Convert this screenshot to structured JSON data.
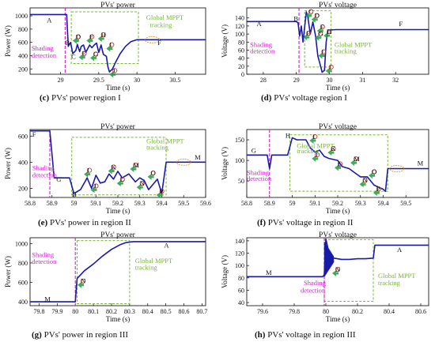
{
  "colors": {
    "curve": "#1a1aa8",
    "shading": "#d21ed2",
    "mppt": "#7ab43c",
    "marker": "#c0392b",
    "arrow": "#1e9e3e",
    "circle": "#e1a42a",
    "axis": "#000000"
  },
  "figure": {
    "captions": [
      {
        "tag": "(c)",
        "text": "PVs' power region I"
      },
      {
        "tag": "(d)",
        "text": "PVs' voltage region I"
      },
      {
        "tag": "(e)",
        "text": "PVs' power in region II"
      },
      {
        "tag": "(f)",
        "text": "PVs' voltage in region II"
      },
      {
        "tag": "(g)",
        "text": "PVs' power in region III"
      },
      {
        "tag": "(h)",
        "text": "PVs' voltage in region III"
      }
    ]
  },
  "chart_data": [
    {
      "type": "line",
      "title": "PVs' power",
      "xlabel": "Time (s)",
      "ylabel": "Power (W)",
      "xlim": [
        28.6,
        30.9
      ],
      "ylim": [
        120,
        1120
      ],
      "xticks": [
        29,
        29.5,
        30,
        30.5
      ],
      "yticks": [
        200,
        400,
        600,
        800,
        1000
      ],
      "series": [
        {
          "x": [
            28.6,
            29.08,
            29.1,
            29.13,
            29.16,
            29.2,
            29.22,
            29.25,
            29.27,
            29.3,
            29.33,
            29.38,
            29.41,
            29.44,
            29.47,
            29.5,
            29.53,
            29.56,
            29.6,
            29.62,
            29.64,
            29.68,
            29.72,
            29.78,
            29.85,
            29.92,
            30.0,
            30.3,
            30.9
          ],
          "y": [
            1020,
            1020,
            540,
            600,
            430,
            480,
            570,
            460,
            540,
            560,
            450,
            560,
            520,
            560,
            590,
            450,
            560,
            420,
            390,
            230,
            155,
            200,
            300,
            430,
            540,
            610,
            640,
            640,
            640
          ]
        }
      ],
      "shading_detection_x": 29.06,
      "mppt_window": {
        "x": [
          29.14,
          30.02
        ],
        "y": [
          280,
          1060
        ]
      },
      "point_labels": [
        {
          "t": "A",
          "x": 28.82,
          "y": 900
        },
        {
          "t": "B",
          "x": 29.06,
          "y": 560
        },
        {
          "t": "C",
          "x": 29.14,
          "y": 350
        },
        {
          "t": "D",
          "x": 29.2,
          "y": 650
        },
        {
          "t": "E",
          "x": 29.28,
          "y": 400
        },
        {
          "t": "F",
          "x": 29.38,
          "y": 650
        },
        {
          "t": "G",
          "x": 29.43,
          "y": 390
        },
        {
          "t": "H",
          "x": 29.53,
          "y": 680
        },
        {
          "t": "I",
          "x": 29.64,
          "y": 530
        },
        {
          "t": "J",
          "x": 29.68,
          "y": 140
        },
        {
          "t": "F",
          "x": 30.27,
          "y": 560
        }
      ],
      "annotations": [
        {
          "text": "Shading",
          "x": 28.62,
          "y": 480
        },
        {
          "text": "detection",
          "x": 28.62,
          "y": 370
        },
        {
          "text": "Global MPPT",
          "x": 30.12,
          "y": 940
        },
        {
          "text": "tracking",
          "x": 30.17,
          "y": 830
        }
      ],
      "circle_at": {
        "x": 30.2,
        "y": 640
      }
    },
    {
      "type": "line",
      "title": "PVs' voltage",
      "xlabel": "Time (s)",
      "ylabel": "Voltage (V)",
      "xlim": [
        27.5,
        33.0
      ],
      "ylim": [
        0,
        165
      ],
      "xticks": [
        28,
        29,
        30,
        31,
        32
      ],
      "yticks": [
        0,
        20,
        40,
        60,
        80,
        100,
        120,
        140
      ],
      "series": [
        {
          "x": [
            27.5,
            29.0,
            29.05,
            29.1,
            29.15,
            29.2,
            29.3,
            29.35,
            29.42,
            29.5,
            29.58,
            29.65,
            29.7,
            29.78,
            29.85,
            29.9,
            29.95,
            30.0,
            30.2,
            33.0
          ],
          "y": [
            131,
            131,
            128,
            95,
            120,
            80,
            155,
            140,
            100,
            130,
            95,
            45,
            30,
            5,
            10,
            80,
            110,
            110,
            111,
            111
          ]
        }
      ],
      "shading_detection_x": 29.08,
      "mppt_window": {
        "x": [
          29.25,
          30.05
        ],
        "y": [
          18,
          158
        ]
      },
      "point_labels": [
        {
          "t": "A",
          "x": 27.8,
          "y": 120
        },
        {
          "t": "B",
          "x": 28.92,
          "y": 133
        },
        {
          "t": "C",
          "x": 29.37,
          "y": 150
        },
        {
          "t": "D",
          "x": 29.55,
          "y": 140
        },
        {
          "t": "E",
          "x": 29.3,
          "y": 96
        },
        {
          "t": "F",
          "x": 29.72,
          "y": 112
        },
        {
          "t": "G",
          "x": 29.66,
          "y": 95
        },
        {
          "t": "H",
          "x": 29.92,
          "y": 100
        },
        {
          "t": "I",
          "x": 29.76,
          "y": 50
        },
        {
          "t": "J",
          "x": 29.98,
          "y": 12
        },
        {
          "t": "F",
          "x": 32.1,
          "y": 120
        }
      ],
      "annotations": [
        {
          "text": "Shading",
          "x": 27.6,
          "y": 68
        },
        {
          "text": "detection",
          "x": 27.6,
          "y": 52
        },
        {
          "text": "Global MPPT",
          "x": 30.15,
          "y": 68
        },
        {
          "text": "tracking",
          "x": 30.15,
          "y": 52
        }
      ],
      "circle_at": null
    },
    {
      "type": "line",
      "title": "PVs' power",
      "xlabel": "Time (s)",
      "ylabel": "Power (W)",
      "xlim": [
        58.8,
        59.6
      ],
      "ylim": [
        130,
        650
      ],
      "xticks": [
        58.8,
        58.9,
        59,
        59.1,
        59.2,
        59.3,
        59.4,
        59.5,
        59.6
      ],
      "yticks": [
        200,
        400,
        600
      ],
      "series": [
        {
          "x": [
            58.8,
            58.89,
            58.91,
            58.98,
            59.0,
            59.03,
            59.06,
            59.08,
            59.1,
            59.12,
            59.14,
            59.16,
            59.18,
            59.2,
            59.22,
            59.25,
            59.28,
            59.3,
            59.32,
            59.34,
            59.36,
            59.38,
            59.4,
            59.42,
            59.6
          ],
          "y": [
            640,
            640,
            280,
            280,
            160,
            190,
            280,
            200,
            300,
            240,
            250,
            310,
            270,
            330,
            280,
            310,
            250,
            280,
            260,
            190,
            230,
            270,
            160,
            400,
            400
          ]
        }
      ],
      "shading_detection_x": 58.89,
      "mppt_window": {
        "x": [
          58.99,
          59.42
        ],
        "y": [
          150,
          590
        ]
      },
      "point_labels": [
        {
          "t": "F",
          "x": 58.81,
          "y": 595
        },
        {
          "t": "G",
          "x": 58.92,
          "y": 250
        },
        {
          "t": "H",
          "x": 58.99,
          "y": 135
        },
        {
          "t": "I",
          "x": 59.06,
          "y": 320
        },
        {
          "t": "J",
          "x": 59.09,
          "y": 200
        },
        {
          "t": "K",
          "x": 59.17,
          "y": 345
        },
        {
          "t": "L",
          "x": 59.21,
          "y": 250
        },
        {
          "t": "M",
          "x": 59.27,
          "y": 360
        },
        {
          "t": "N",
          "x": 59.3,
          "y": 220
        },
        {
          "t": "O",
          "x": 59.35,
          "y": 300
        },
        {
          "t": "P",
          "x": 59.39,
          "y": 160
        },
        {
          "t": "M",
          "x": 59.55,
          "y": 420
        }
      ],
      "annotations": [
        {
          "text": "Shading",
          "x": 58.81,
          "y": 340
        },
        {
          "text": "detection",
          "x": 58.81,
          "y": 285
        },
        {
          "text": "Global MPPT",
          "x": 59.33,
          "y": 545
        },
        {
          "text": "tracking",
          "x": 59.33,
          "y": 495
        }
      ],
      "circle_at": {
        "x": 59.5,
        "y": 400
      }
    },
    {
      "type": "line",
      "title": "PVs' voltage",
      "xlabel": "Time (s)",
      "ylabel": "Voltage (V)",
      "xlim": [
        58.8,
        59.6
      ],
      "ylim": [
        10,
        175
      ],
      "xticks": [
        58.8,
        58.9,
        59,
        59.1,
        59.2,
        59.3,
        59.4,
        59.5
      ],
      "yticks": [
        50,
        100,
        150
      ],
      "series": [
        {
          "x": [
            58.8,
            58.89,
            58.9,
            58.91,
            58.98,
            59.0,
            59.02,
            59.06,
            59.08,
            59.1,
            59.12,
            59.14,
            59.16,
            59.2,
            59.22,
            59.25,
            59.3,
            59.33,
            59.36,
            59.4,
            59.41,
            59.42,
            59.6
          ],
          "y": [
            113,
            113,
            80,
            113,
            113,
            155,
            150,
            150,
            130,
            120,
            125,
            110,
            105,
            100,
            85,
            80,
            60,
            60,
            40,
            30,
            25,
            80,
            80
          ]
        }
      ],
      "shading_detection_x": 58.9,
      "mppt_window": {
        "x": [
          58.99,
          59.42
        ],
        "y": [
          25,
          162
        ]
      },
      "point_labels": [
        {
          "t": "G",
          "x": 58.82,
          "y": 118
        },
        {
          "t": "H",
          "x": 58.97,
          "y": 155
        },
        {
          "t": "I",
          "x": 59.09,
          "y": 152
        },
        {
          "t": "J",
          "x": 59.1,
          "y": 108
        },
        {
          "t": "K",
          "x": 59.17,
          "y": 123
        },
        {
          "t": "L",
          "x": 59.2,
          "y": 86
        },
        {
          "t": "M",
          "x": 59.27,
          "y": 98
        },
        {
          "t": "N",
          "x": 59.31,
          "y": 46
        },
        {
          "t": "O",
          "x": 59.35,
          "y": 67
        },
        {
          "t": "P",
          "x": 59.37,
          "y": 25
        },
        {
          "t": "M",
          "x": 59.55,
          "y": 88
        }
      ],
      "annotations": [
        {
          "text": "Shading",
          "x": 58.8,
          "y": 65
        },
        {
          "text": "detection",
          "x": 58.8,
          "y": 50
        },
        {
          "text": "Global MPPT",
          "x": 59.02,
          "y": 130
        },
        {
          "text": "tracking",
          "x": 59.02,
          "y": 117
        }
      ],
      "circle_at": {
        "x": 59.46,
        "y": 80
      }
    },
    {
      "type": "line",
      "title": "PVs' power",
      "xlabel": "Time (s)",
      "ylabel": "Power (W)",
      "xlim": [
        79.75,
        80.72
      ],
      "ylim": [
        360,
        1060
      ],
      "xticks": [
        79.8,
        79.9,
        80,
        80.1,
        80.2,
        80.3,
        80.4,
        80.5,
        80.6,
        80.7
      ],
      "yticks": [
        400,
        600,
        800,
        1000
      ],
      "series": [
        {
          "x": [
            79.75,
            80.0,
            80.01,
            80.03,
            80.05,
            80.1,
            80.15,
            80.2,
            80.25,
            80.28,
            80.32,
            80.72
          ],
          "y": [
            400,
            400,
            640,
            680,
            720,
            790,
            870,
            940,
            990,
            1010,
            1020,
            1020
          ]
        }
      ],
      "shading_detection_x": 80.0,
      "mppt_window": {
        "x": [
          80.01,
          80.3
        ],
        "y": [
          380,
          1030
        ]
      },
      "point_labels": [
        {
          "t": "M",
          "x": 79.83,
          "y": 405
        },
        {
          "t": "N",
          "x": 80.03,
          "y": 590
        },
        {
          "t": "A",
          "x": 80.49,
          "y": 960
        }
      ],
      "annotations": [
        {
          "text": "Shading",
          "x": 79.76,
          "y": 860
        },
        {
          "text": "detection",
          "x": 79.76,
          "y": 790
        },
        {
          "text": "Global MPPT",
          "x": 80.33,
          "y": 800
        },
        {
          "text": "tracking",
          "x": 80.33,
          "y": 730
        }
      ],
      "circle_at": null
    },
    {
      "type": "line",
      "title": "PVs' voltage",
      "xlabel": "Time (s)",
      "ylabel": "Voltage (V)",
      "xlim": [
        79.5,
        80.65
      ],
      "ylim": [
        35,
        145
      ],
      "xticks": [
        79.6,
        79.8,
        80,
        80.2,
        80.4,
        80.6
      ],
      "yticks": [
        40,
        60,
        80,
        100,
        120,
        140
      ],
      "series": [
        {
          "x": [
            79.5,
            79.98,
            79.99,
            80.0,
            80.02,
            80.05,
            80.1,
            80.15,
            80.2,
            80.25,
            80.3,
            80.31,
            80.65
          ],
          "y": [
            82,
            82,
            85,
            143,
            120,
            112,
            110,
            110,
            111,
            111,
            112,
            133,
            133
          ]
        }
      ],
      "oscillation": {
        "x": [
          79.99,
          80.05
        ],
        "amp": [
          58,
          10
        ]
      },
      "shading_detection_x": 79.99,
      "mppt_window": {
        "x": [
          79.99,
          80.3
        ],
        "y": [
          42,
          142
        ]
      },
      "point_labels": [
        {
          "t": "M",
          "x": 79.62,
          "y": 85
        },
        {
          "t": "N",
          "x": 80.06,
          "y": 90
        },
        {
          "t": "A",
          "x": 80.45,
          "y": 122
        }
      ],
      "annotations": [
        {
          "text": "Shading",
          "x": 79.86,
          "y": 68
        },
        {
          "text": "detection",
          "x": 79.84,
          "y": 56
        },
        {
          "text": "Global MPPT",
          "x": 80.33,
          "y": 80
        },
        {
          "text": "tracking",
          "x": 80.33,
          "y": 68
        }
      ],
      "circle_at": null
    }
  ]
}
